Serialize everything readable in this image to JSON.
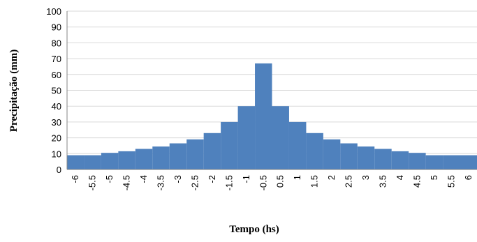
{
  "chart_data": {
    "type": "bar",
    "title": "",
    "xlabel": "Tempo (hs)",
    "ylabel": "Precipitação  (mm)",
    "ylim": [
      0,
      100
    ],
    "yticks": [
      "0",
      "10",
      "20",
      "30",
      "40",
      "50",
      "60",
      "70",
      "80",
      "90",
      "100"
    ],
    "xticks": [
      "-6",
      "-5.5",
      "-5",
      "-4.5",
      "-4",
      "-3.5",
      "-3",
      "-2.5",
      "-2",
      "-1.5",
      "-1",
      "-0.5",
      "0.5",
      "1",
      "1.5",
      "2",
      "2.5",
      "3",
      "3.5",
      "4",
      "4.5",
      "5",
      "5.5",
      "6"
    ],
    "x": [
      -6,
      -5.5,
      -5,
      -4.5,
      -4,
      -3.5,
      -3,
      -2.5,
      -2,
      -1.5,
      -1,
      -0.5,
      0.5,
      1,
      1.5,
      2,
      2.5,
      3,
      3.5,
      4,
      4.5,
      5,
      5.5,
      6
    ],
    "bars": [
      {
        "from": -6,
        "to": -5.5,
        "value": 9
      },
      {
        "from": -5.5,
        "to": -5,
        "value": 9
      },
      {
        "from": -5,
        "to": -4.5,
        "value": 10.5
      },
      {
        "from": -4.5,
        "to": -4,
        "value": 11.5
      },
      {
        "from": -4,
        "to": -3.5,
        "value": 13
      },
      {
        "from": -3.5,
        "to": -3,
        "value": 14.5
      },
      {
        "from": -3,
        "to": -2.5,
        "value": 16.5
      },
      {
        "from": -2.5,
        "to": -2,
        "value": 19
      },
      {
        "from": -2,
        "to": -1.5,
        "value": 23
      },
      {
        "from": -1.5,
        "to": -1,
        "value": 30
      },
      {
        "from": -1,
        "to": -0.5,
        "value": 40
      },
      {
        "from": -0.5,
        "to": 0.5,
        "value": 67
      },
      {
        "from": 0.5,
        "to": 1,
        "value": 40
      },
      {
        "from": 1,
        "to": 1.5,
        "value": 30
      },
      {
        "from": 1.5,
        "to": 2,
        "value": 23
      },
      {
        "from": 2,
        "to": 2.5,
        "value": 19
      },
      {
        "from": 2.5,
        "to": 3,
        "value": 16.5
      },
      {
        "from": 3,
        "to": 3.5,
        "value": 14.5
      },
      {
        "from": 3.5,
        "to": 4,
        "value": 13
      },
      {
        "from": 4,
        "to": 4.5,
        "value": 11.5
      },
      {
        "from": 4.5,
        "to": 5,
        "value": 10.5
      },
      {
        "from": 5,
        "to": 5.5,
        "value": 9
      },
      {
        "from": 5.5,
        "to": 6,
        "value": 9
      }
    ],
    "color": "#4f81bd",
    "grid": true,
    "legend": "none"
  }
}
